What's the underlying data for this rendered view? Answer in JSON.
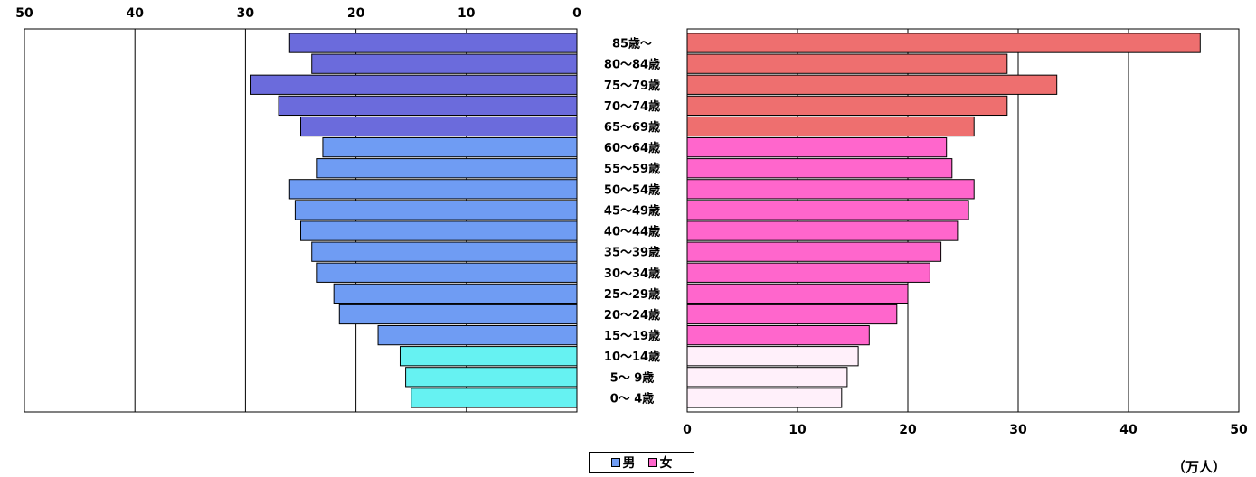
{
  "chart_data": {
    "type": "bar",
    "orientation": "horizontal-population-pyramid",
    "categories": [
      "85歳～",
      "80～84歳",
      "75～79歳",
      "70～74歳",
      "65～69歳",
      "60～64歳",
      "55～59歳",
      "50～54歳",
      "45～49歳",
      "40～44歳",
      "35～39歳",
      "30～34歳",
      "25～29歳",
      "20～24歳",
      "15～19歳",
      "10～14歳",
      "5～ 9歳",
      "0～ 4歳"
    ],
    "series": [
      {
        "name": "男",
        "values": [
          26,
          24,
          29.5,
          27,
          25,
          23,
          23.5,
          26,
          25.5,
          25,
          24,
          23.5,
          22,
          21.5,
          18,
          16,
          15.5,
          15
        ],
        "colors": {
          "old": "#6b6bdc",
          "working": "#6f9cf3",
          "young": "#66f2f2"
        }
      },
      {
        "name": "女",
        "values": [
          46.5,
          29,
          33.5,
          29,
          26,
          23.5,
          24,
          26,
          25.5,
          24.5,
          23,
          22,
          20,
          19,
          16.5,
          15.5,
          14.5,
          14
        ],
        "colors": {
          "old": "#ee6f6f",
          "working": "#ff66cc",
          "young": "#fff0fa"
        }
      }
    ],
    "left_axis": {
      "ticks": [
        "50",
        "40",
        "30",
        "20",
        "10",
        "0"
      ],
      "range": [
        0,
        50
      ]
    },
    "right_axis": {
      "ticks": [
        "0",
        "10",
        "20",
        "30",
        "40",
        "50"
      ],
      "range": [
        0,
        50
      ]
    },
    "unit_label": "（万人）",
    "grid": true,
    "legend_position": "bottom-center"
  },
  "legend": {
    "male": {
      "label": "男",
      "color": "#6f9cf3"
    },
    "female": {
      "label": "女",
      "color": "#ff66cc"
    }
  }
}
